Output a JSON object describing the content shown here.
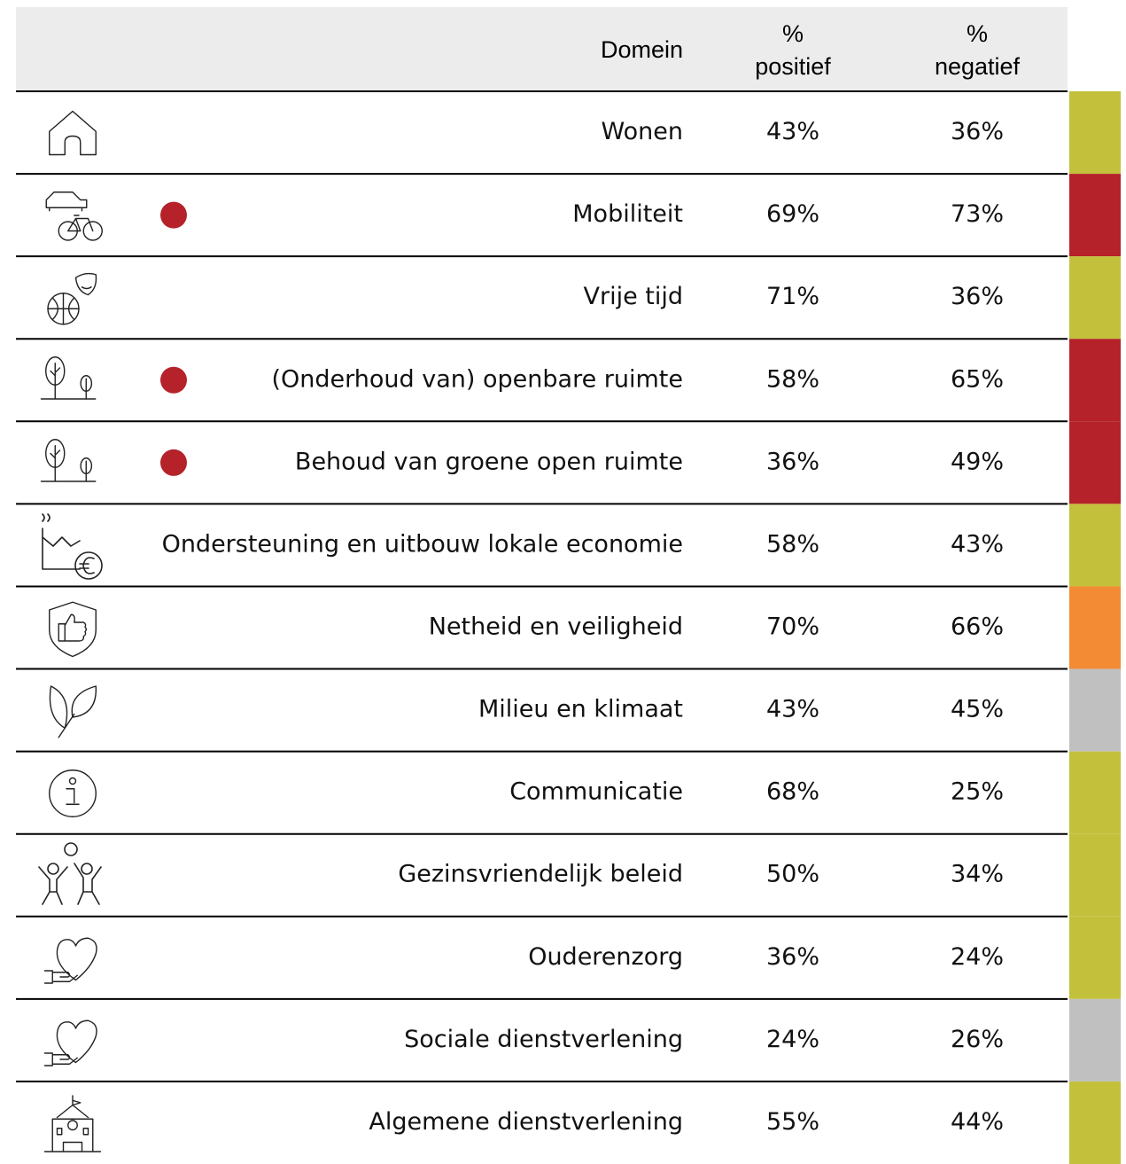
{
  "header": {
    "domain": "Domein",
    "positive": [
      "%",
      "positief"
    ],
    "negative": [
      "%",
      "negatief"
    ]
  },
  "table": {
    "rows": [
      {
        "domain": "Wonen",
        "positive": "43%",
        "negative": "36%",
        "status_color": "#c3c13b",
        "dot": false
      },
      {
        "domain": "Mobiliteit",
        "positive": "69%",
        "negative": "73%",
        "status_color": "#b5222a",
        "dot": true
      },
      {
        "domain": "Vrije tijd",
        "positive": "71%",
        "negative": "36%",
        "status_color": "#c3c13b",
        "dot": false
      },
      {
        "domain": "(Onderhoud van) openbare ruimte",
        "positive": "58%",
        "negative": "65%",
        "status_color": "#b5222a",
        "dot": true
      },
      {
        "domain": "Behoud van groene open ruimte",
        "positive": "36%",
        "negative": "49%",
        "status_color": "#b5222a",
        "dot": true
      },
      {
        "domain": "Ondersteuning en uitbouw lokale economie",
        "positive": "58%",
        "negative": "43%",
        "status_color": "#c3c13b",
        "dot": false
      },
      {
        "domain": "Netheid en veiligheid",
        "positive": "70%",
        "negative": "66%",
        "status_color": "#f38b34",
        "dot": false
      },
      {
        "domain": "Milieu en klimaat",
        "positive": "43%",
        "negative": "45%",
        "status_color": "#c0c0c0",
        "dot": false
      },
      {
        "domain": "Communicatie",
        "positive": "68%",
        "negative": "25%",
        "status_color": "#c3c13b",
        "dot": false
      },
      {
        "domain": "Gezinsvriendelijk beleid",
        "positive": "50%",
        "negative": "34%",
        "status_color": "#c3c13b",
        "dot": false
      },
      {
        "domain": "Ouderenzorg",
        "positive": "36%",
        "negative": "24%",
        "status_color": "#c3c13b",
        "dot": false
      },
      {
        "domain": "Sociale dienstverlening",
        "positive": "24%",
        "negative": "26%",
        "status_color": "#c0c0c0",
        "dot": false
      },
      {
        "domain": "Algemene dienstverlening",
        "positive": "55%",
        "negative": "44%",
        "status_color": "#c3c13b",
        "dot": false
      }
    ],
    "dot_color": "#b5222a"
  }
}
